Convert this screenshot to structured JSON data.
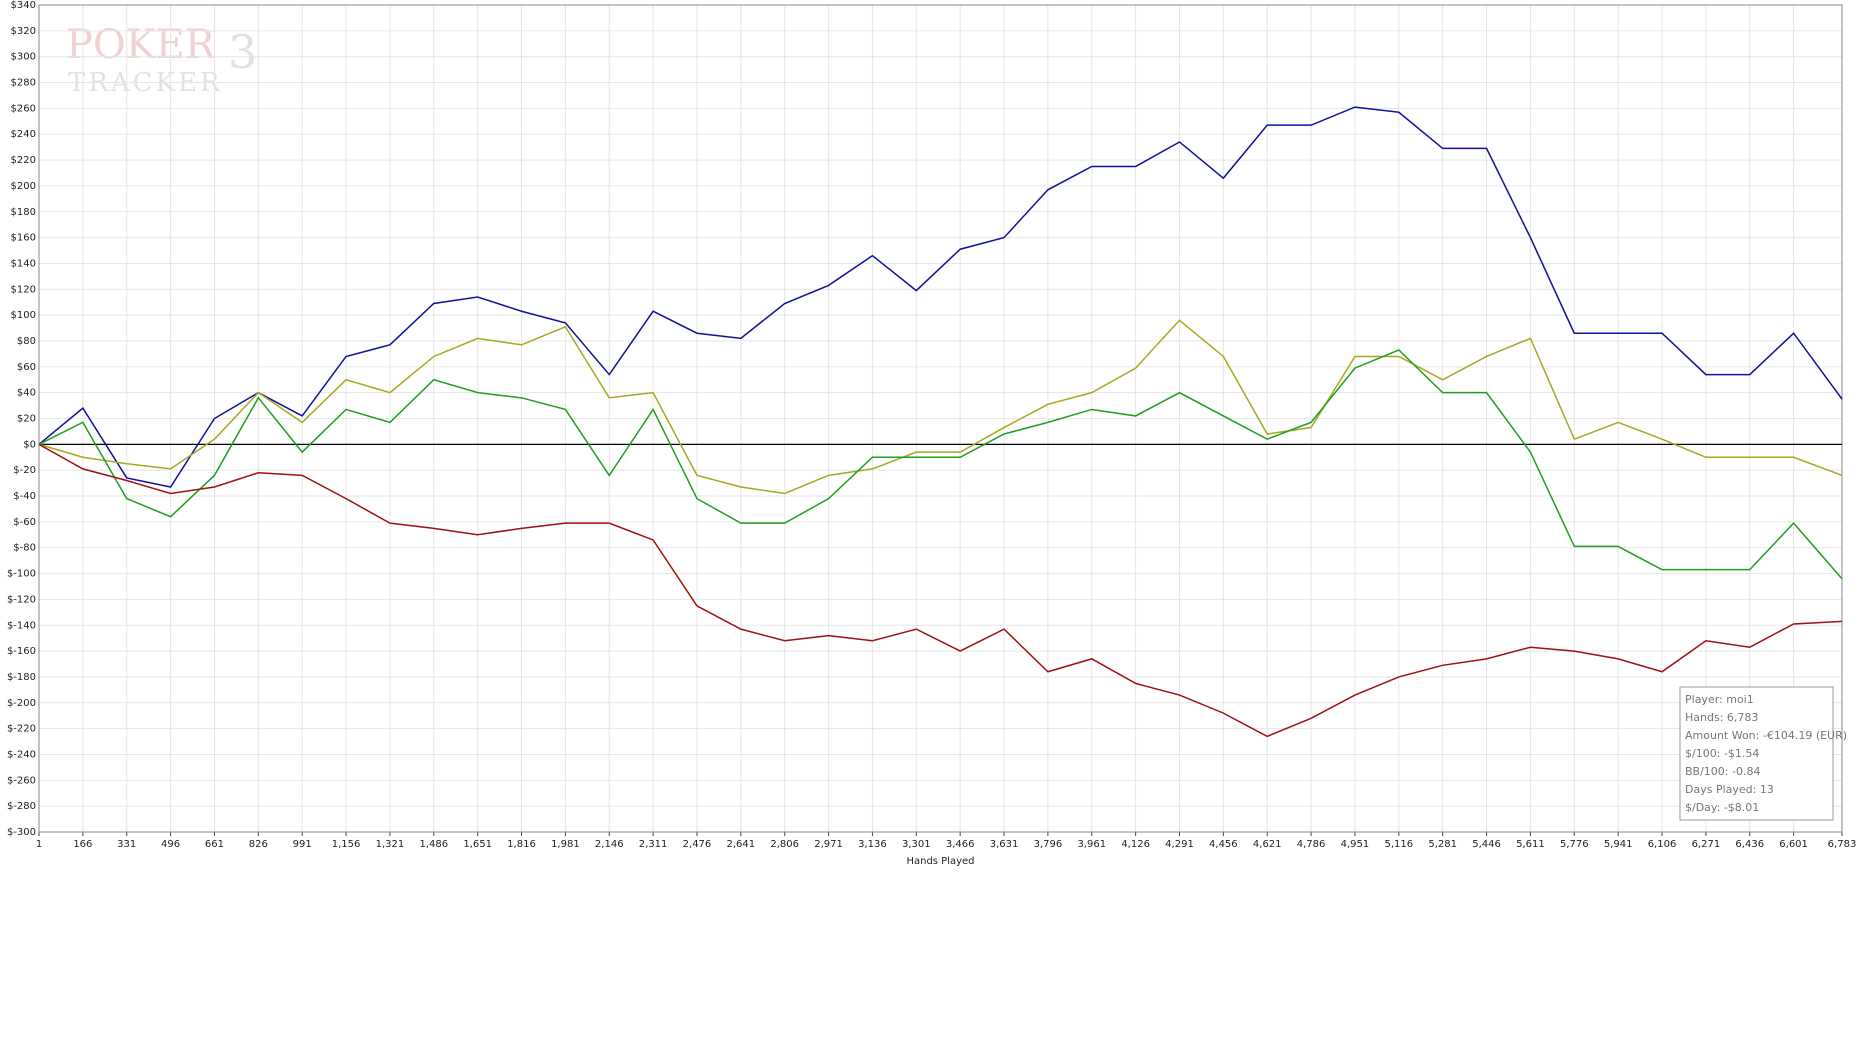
{
  "chart_data": {
    "type": "line",
    "x_label": "Hands Played",
    "watermark": {
      "line1": "POKER",
      "line2": "TRACKER",
      "version": "3"
    },
    "x": [
      1,
      166,
      331,
      496,
      661,
      826,
      991,
      1156,
      1321,
      1486,
      1651,
      1816,
      1981,
      2146,
      2311,
      2476,
      2641,
      2806,
      2971,
      3136,
      3301,
      3466,
      3631,
      3796,
      3961,
      4126,
      4291,
      4456,
      4621,
      4786,
      4951,
      5116,
      5281,
      5446,
      5611,
      5776,
      5941,
      6106,
      6271,
      6436,
      6601,
      6783
    ],
    "series": [
      {
        "color": "#10109a",
        "values": [
          0,
          28,
          -26,
          -33,
          20,
          40,
          22,
          68,
          77,
          109,
          114,
          103,
          94,
          54,
          103,
          86,
          82,
          109,
          123,
          146,
          119,
          151,
          160,
          197,
          215,
          215,
          234,
          206,
          247,
          247,
          261,
          257,
          229,
          229,
          160,
          86,
          86,
          86,
          54,
          54,
          86,
          35
        ]
      },
      {
        "color": "#a8a820",
        "values": [
          0,
          -10,
          -15,
          -19,
          4,
          40,
          17,
          50,
          40,
          68,
          82,
          77,
          91,
          36,
          40,
          -24,
          -33,
          -38,
          -24,
          -19,
          -6,
          -6,
          13,
          31,
          40,
          59,
          96,
          68,
          8,
          13,
          68,
          68,
          50,
          68,
          82,
          4,
          17,
          4,
          -10,
          -10,
          -10,
          -24
        ]
      },
      {
        "color": "#1f9f1f",
        "values": [
          0,
          17,
          -42,
          -56,
          -24,
          36,
          -6,
          27,
          17,
          50,
          40,
          36,
          27,
          -24,
          27,
          -42,
          -61,
          -61,
          -42,
          -10,
          -10,
          -10,
          8,
          17,
          27,
          22,
          40,
          22,
          4,
          17,
          59,
          73,
          40,
          40,
          -6,
          -79,
          -79,
          -97,
          -97,
          -97,
          -61,
          -104
        ]
      },
      {
        "color": "#a01010",
        "values": [
          0,
          -19,
          -28,
          -38,
          -33,
          -22,
          -24,
          -42,
          -61,
          -65,
          -70,
          -65,
          -61,
          -61,
          -74,
          -125,
          -143,
          -152,
          -148,
          -152,
          -143,
          -160,
          -143,
          -176,
          -166,
          -185,
          -194,
          -208,
          -226,
          -212,
          -194,
          -180,
          -171,
          -166,
          -157,
          -160,
          -166,
          -176,
          -152,
          -157,
          -139,
          -137
        ]
      }
    ],
    "xlim": [
      1,
      6783
    ],
    "xticks": [
      1,
      166,
      331,
      496,
      661,
      826,
      {
        "value": 991,
        "label": "991"
      },
      {
        "value": 1156,
        "label": "1,156"
      },
      {
        "value": 1321,
        "label": "1,321"
      },
      {
        "value": 1486,
        "label": "1,486"
      },
      {
        "value": 1651,
        "label": "1,651"
      },
      {
        "value": 1816,
        "label": "1,816"
      },
      {
        "value": 1981,
        "label": "1,981"
      },
      {
        "value": 2146,
        "label": "2,146"
      },
      {
        "value": 2311,
        "label": "2,311"
      },
      {
        "value": 2476,
        "label": "2,476"
      },
      {
        "value": 2641,
        "label": "2,641"
      },
      {
        "value": 2806,
        "label": "2,806"
      },
      {
        "value": 2971,
        "label": "2,971"
      },
      {
        "value": 3136,
        "label": "3,136"
      },
      {
        "value": 3301,
        "label": "3,301"
      },
      {
        "value": 3466,
        "label": "3,466"
      },
      {
        "value": 3631,
        "label": "3,631"
      },
      {
        "value": 3796,
        "label": "3,796"
      },
      {
        "value": 3961,
        "label": "3,961"
      },
      {
        "value": 4126,
        "label": "4,126"
      },
      {
        "value": 4291,
        "label": "4,291"
      },
      {
        "value": 4456,
        "label": "4,456"
      },
      {
        "value": 4621,
        "label": "4,621"
      },
      {
        "value": 4786,
        "label": "4,786"
      },
      {
        "value": 4951,
        "label": "4,951"
      },
      {
        "value": 5116,
        "label": "5,116"
      },
      {
        "value": 5281,
        "label": "5,281"
      },
      {
        "value": 5446,
        "label": "5,446"
      },
      {
        "value": 5611,
        "label": "5,611"
      },
      {
        "value": 5776,
        "label": "5,776"
      },
      {
        "value": 5941,
        "label": "5,941"
      },
      {
        "value": 6106,
        "label": "6,106"
      },
      {
        "value": 6271,
        "label": "6,271"
      },
      {
        "value": 6436,
        "label": "6,436"
      },
      {
        "value": 6601,
        "label": "6,601"
      },
      {
        "value": 6783,
        "label": "6,783"
      }
    ],
    "ylim": [
      -300,
      340
    ],
    "yticks": [
      {
        "value": 340,
        "label": "$340"
      },
      {
        "value": 320,
        "label": "$320"
      },
      {
        "value": 300,
        "label": "$300"
      },
      {
        "value": 280,
        "label": "$280"
      },
      {
        "value": 260,
        "label": "$260"
      },
      {
        "value": 240,
        "label": "$240"
      },
      {
        "value": 220,
        "label": "$220"
      },
      {
        "value": 200,
        "label": "$200"
      },
      {
        "value": 180,
        "label": "$180"
      },
      {
        "value": 160,
        "label": "$160"
      },
      {
        "value": 140,
        "label": "$140"
      },
      {
        "value": 120,
        "label": "$120"
      },
      {
        "value": 100,
        "label": "$100"
      },
      {
        "value": 80,
        "label": "$80"
      },
      {
        "value": 60,
        "label": "$60"
      },
      {
        "value": 40,
        "label": "$40"
      },
      {
        "value": 20,
        "label": "$20"
      },
      {
        "value": 0,
        "label": "$0"
      },
      {
        "value": -20,
        "label": "$-20"
      },
      {
        "value": -40,
        "label": "$-40"
      },
      {
        "value": -60,
        "label": "$-60"
      },
      {
        "value": -80,
        "label": "$-80"
      },
      {
        "value": -100,
        "label": "$-100"
      },
      {
        "value": -120,
        "label": "$-120"
      },
      {
        "value": -140,
        "label": "$-140"
      },
      {
        "value": -160,
        "label": "$-160"
      },
      {
        "value": -180,
        "label": "$-180"
      },
      {
        "value": -200,
        "label": "$-200"
      },
      {
        "value": -220,
        "label": "$-220"
      },
      {
        "value": -240,
        "label": "$-240"
      },
      {
        "value": -260,
        "label": "$-260"
      },
      {
        "value": -280,
        "label": "$-280"
      },
      {
        "value": -300,
        "label": "$-300"
      }
    ],
    "grid": true,
    "info_box": [
      "Player: moi1",
      "Hands: 6,783",
      "Amount Won: -€104.19 (EUR)",
      "$/100: -$1.54",
      "BB/100: -0.84",
      "Days Played: 13",
      "$/Day: -$8.01"
    ]
  }
}
